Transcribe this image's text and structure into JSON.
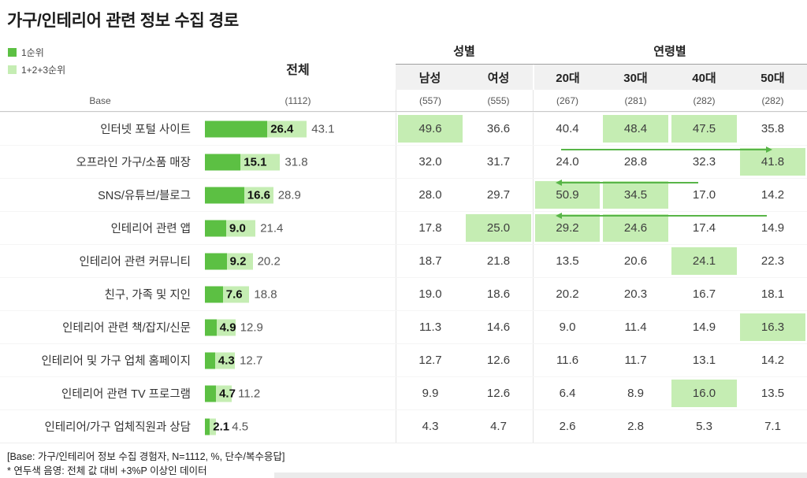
{
  "title": "가구/인테리어 관련 정보 수집 경로",
  "legend": {
    "rank1": "1순위",
    "top3": "1+2+3순위"
  },
  "colors": {
    "rank1": "#5cc043",
    "top3": "#c5edb3",
    "highlight": "#c5edb3",
    "arrow": "#58b548"
  },
  "header": {
    "total": "전체",
    "gender_group": "성별",
    "age_group": "연령별",
    "base_label": "Base",
    "base_total": "(1112)",
    "columns": [
      "남성",
      "여성",
      "20대",
      "30대",
      "40대",
      "50대"
    ],
    "base_values": [
      "(557)",
      "(555)",
      "(267)",
      "(281)",
      "(282)",
      "(282)"
    ]
  },
  "rows": [
    {
      "label": "인터넷 포털 사이트",
      "rank1": "26.4",
      "top3": "43.1",
      "values": [
        "49.6",
        "36.6",
        "40.4",
        "48.4",
        "47.5",
        "35.8"
      ],
      "highlights": [
        0,
        3,
        4
      ]
    },
    {
      "label": "오프라인 가구/소품 매장",
      "rank1": "15.1",
      "top3": "31.8",
      "values": [
        "32.0",
        "31.7",
        "24.0",
        "28.8",
        "32.3",
        "41.8"
      ],
      "highlights": [
        5
      ],
      "arrow": {
        "dir": "right",
        "from": "20대",
        "to": "50대"
      }
    },
    {
      "label": "SNS/유튜브/블로그",
      "rank1": "16.6",
      "top3": "28.9",
      "values": [
        "28.0",
        "29.7",
        "50.9",
        "34.5",
        "17.0",
        "14.2"
      ],
      "highlights": [
        2,
        3
      ],
      "arrow": {
        "dir": "left",
        "from": "20대",
        "to": "40대"
      }
    },
    {
      "label": "인테리어 관련 앱",
      "rank1": "9.0",
      "top3": "21.4",
      "values": [
        "17.8",
        "25.0",
        "29.2",
        "24.6",
        "17.4",
        "14.9"
      ],
      "highlights": [
        1,
        2,
        3
      ],
      "arrow": {
        "dir": "left",
        "from": "20대",
        "to": "50대"
      }
    },
    {
      "label": "인테리어 관련 커뮤니티",
      "rank1": "9.2",
      "top3": "20.2",
      "values": [
        "18.7",
        "21.8",
        "13.5",
        "20.6",
        "24.1",
        "22.3"
      ],
      "highlights": [
        4
      ]
    },
    {
      "label": "친구, 가족 및 지인",
      "rank1": "7.6",
      "top3": "18.8",
      "values": [
        "19.0",
        "18.6",
        "20.2",
        "20.3",
        "16.7",
        "18.1"
      ],
      "highlights": []
    },
    {
      "label": "인테리어 관련 책/잡지/신문",
      "rank1": "4.9",
      "top3": "12.9",
      "values": [
        "11.3",
        "14.6",
        "9.0",
        "11.4",
        "14.9",
        "16.3"
      ],
      "highlights": [
        5
      ]
    },
    {
      "label": "인테리어 및 가구 업체 홈페이지",
      "rank1": "4.3",
      "top3": "12.7",
      "values": [
        "12.7",
        "12.6",
        "11.6",
        "11.7",
        "13.1",
        "14.2"
      ],
      "highlights": []
    },
    {
      "label": "인테리어 관련 TV 프로그램",
      "rank1": "4.7",
      "top3": "11.2",
      "values": [
        "9.9",
        "12.6",
        "6.4",
        "8.9",
        "16.0",
        "13.5"
      ],
      "highlights": [
        4
      ]
    },
    {
      "label": "인테리어/가구 업체직원과 상담",
      "rank1": "2.1",
      "top3": "4.5",
      "values": [
        "4.3",
        "4.7",
        "2.6",
        "2.8",
        "5.3",
        "7.1"
      ],
      "highlights": []
    }
  ],
  "footnotes": [
    "[Base: 가구/인테리어 정보 수집 경험자, N=1112, %, 단수/복수응답]",
    "* 연두색 음영: 전체 값 대비 +3%P 이상인 데이터"
  ],
  "chart_data": {
    "type": "bar",
    "title": "가구/인테리어 관련 정보 수집 경로",
    "unit": "%",
    "categories": [
      "인터넷 포털 사이트",
      "오프라인 가구/소품 매장",
      "SNS/유튜브/블로그",
      "인테리어 관련 앱",
      "인테리어 관련 커뮤니티",
      "친구, 가족 및 지인",
      "인테리어 관련 책/잡지/신문",
      "인테리어 및 가구 업체 홈페이지",
      "인테리어 관련 TV 프로그램",
      "인테리어/가구 업체직원과 상담"
    ],
    "series": [
      {
        "name": "1순위 (전체)",
        "values": [
          26.4,
          15.1,
          16.6,
          9.0,
          9.2,
          7.6,
          4.9,
          4.3,
          4.7,
          2.1
        ]
      },
      {
        "name": "1+2+3순위 (전체)",
        "values": [
          43.1,
          31.8,
          28.9,
          21.4,
          20.2,
          18.8,
          12.9,
          12.7,
          11.2,
          4.5
        ]
      },
      {
        "name": "남성",
        "values": [
          49.6,
          32.0,
          28.0,
          17.8,
          18.7,
          19.0,
          11.3,
          12.7,
          9.9,
          4.3
        ]
      },
      {
        "name": "여성",
        "values": [
          36.6,
          31.7,
          29.7,
          25.0,
          21.8,
          18.6,
          14.6,
          12.6,
          12.6,
          4.7
        ]
      },
      {
        "name": "20대",
        "values": [
          40.4,
          24.0,
          50.9,
          29.2,
          13.5,
          20.2,
          9.0,
          11.6,
          6.4,
          2.6
        ]
      },
      {
        "name": "30대",
        "values": [
          48.4,
          28.8,
          34.5,
          24.6,
          20.6,
          20.3,
          11.4,
          11.7,
          8.9,
          2.8
        ]
      },
      {
        "name": "40대",
        "values": [
          47.5,
          32.3,
          17.0,
          17.4,
          24.1,
          16.7,
          14.9,
          13.1,
          16.0,
          5.3
        ]
      },
      {
        "name": "50대",
        "values": [
          35.8,
          41.8,
          14.2,
          14.9,
          22.3,
          18.1,
          16.3,
          14.2,
          13.5,
          7.1
        ]
      }
    ],
    "base_n": {
      "전체": 1112,
      "남성": 557,
      "여성": 555,
      "20대": 267,
      "30대": 281,
      "40대": 282,
      "50대": 282
    },
    "legend_position": "top-left",
    "grid": false,
    "note": "연두색 음영은 전체 값 대비 +3%P 이상인 데이터"
  }
}
